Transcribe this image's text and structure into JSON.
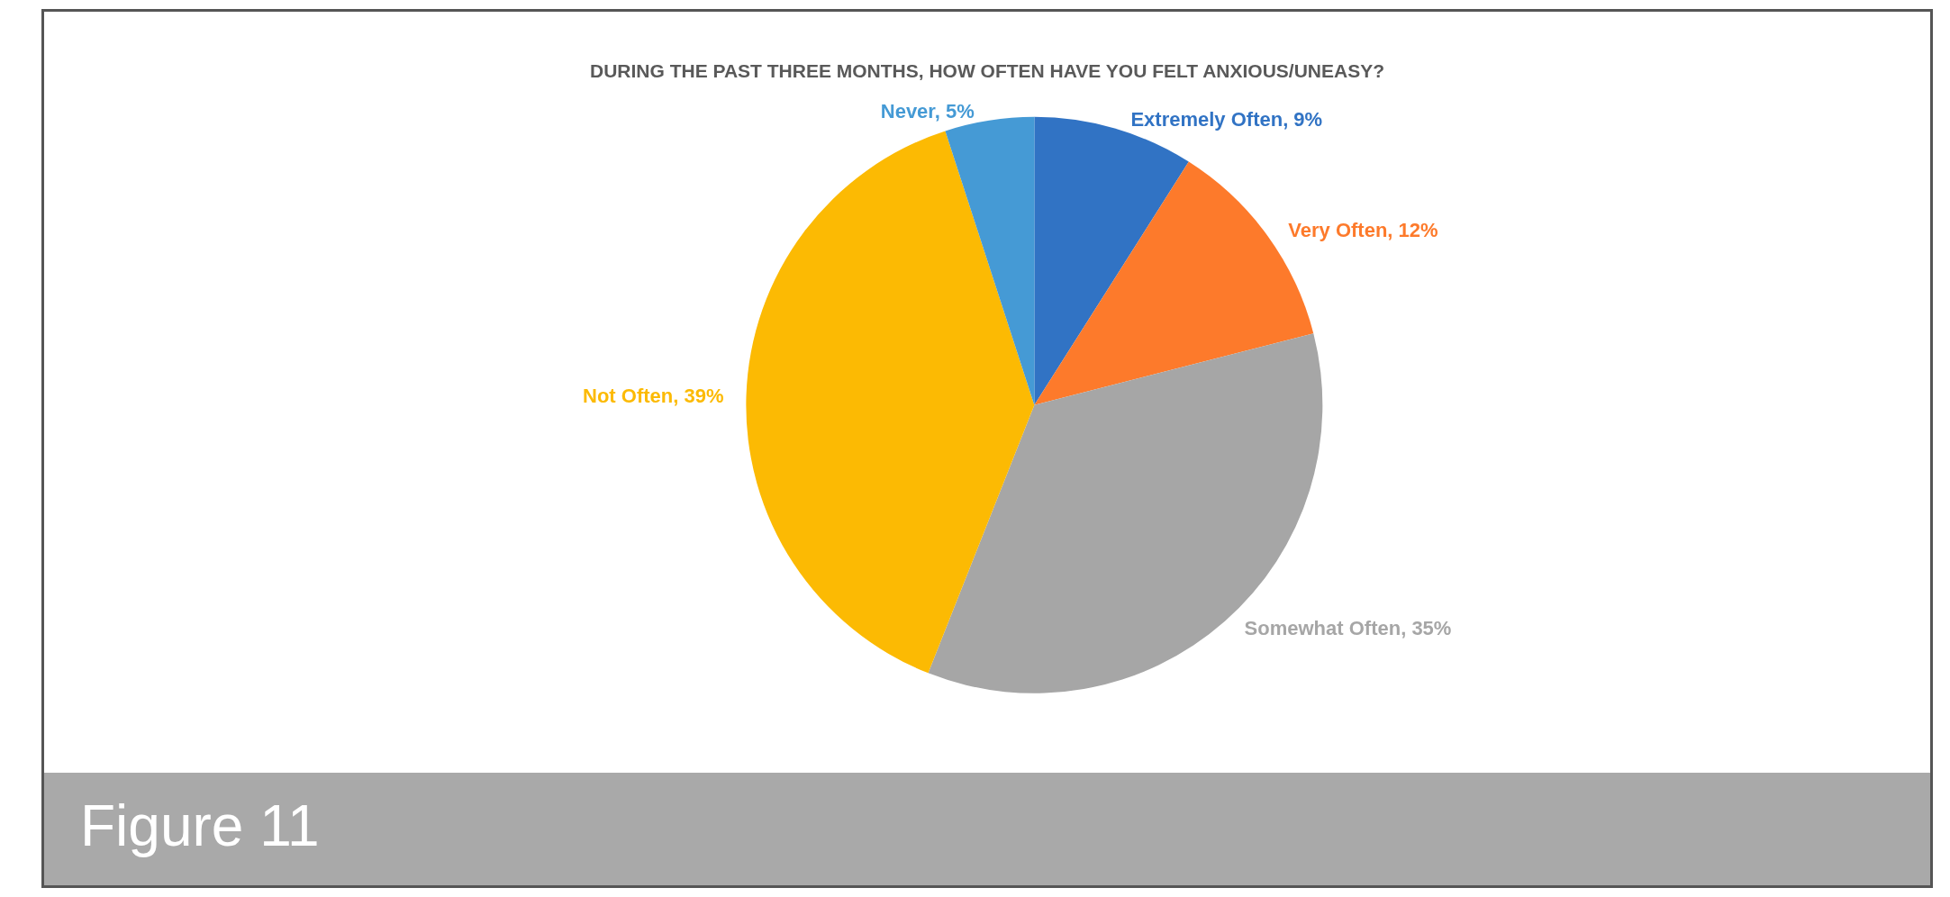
{
  "chart_data": {
    "type": "pie",
    "title": "DURING THE PAST THREE MONTHS, HOW OFTEN HAVE YOU FELT ANXIOUS/UNEASY?",
    "categories": [
      "Extremely Often",
      "Very Often",
      "Somewhat Often",
      "Not Often",
      "Never"
    ],
    "values": [
      9,
      12,
      35,
      39,
      5
    ],
    "value_labels": [
      "9%",
      "12%",
      "35%",
      "39%",
      "5%"
    ],
    "colors": [
      "#3173c4",
      "#fd7a2b",
      "#a6a6a6",
      "#fcba03",
      "#459ad5"
    ],
    "legend": false,
    "annotations": [
      "Figure 11"
    ]
  }
}
